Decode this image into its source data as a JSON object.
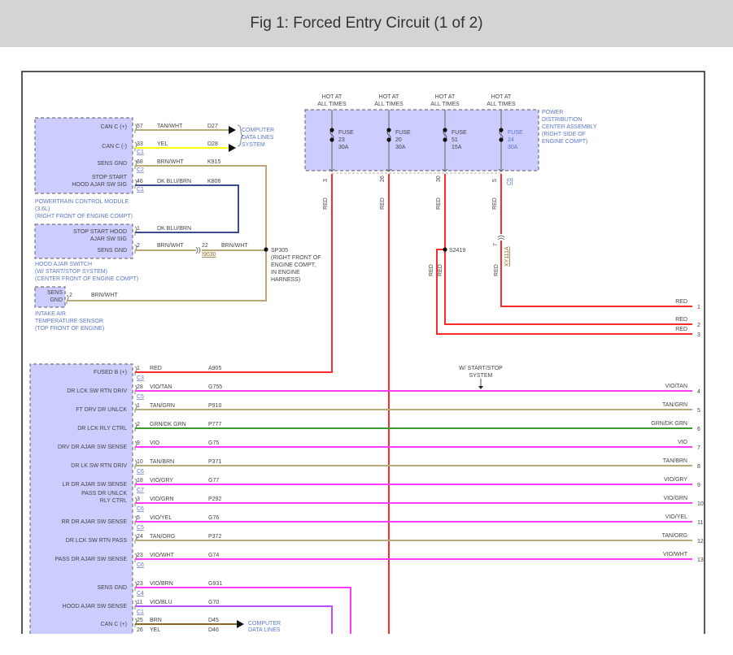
{
  "title": "Fig 1: Forced Entry Circuit (1 of 2)",
  "colors": {
    "module_fill": "#ccccff",
    "red": "#ff2a2a",
    "vio": "#ff3cff",
    "tan": "#b8ab7a",
    "green": "#3a9a30",
    "yel": "#ffff00",
    "dk_blu_brn": "#3a4c96",
    "brn_wht": "#bba877",
    "vio_blu": "#c04cff",
    "brn": "#8a6a20",
    "label_blue": "#5b78c8"
  },
  "pcm": {
    "name": [
      "POWERTRAIN CONTROL MODULE",
      "(3.6L)",
      "(RIGHT FRONT OF ENGINE COMPT)"
    ],
    "pins": [
      {
        "label": [
          "CAN C (+)"
        ],
        "pin": "57",
        "color_name": "TAN/WHT",
        "circuit": "D27",
        "connector": ""
      },
      {
        "label": [
          "CAN C (-)"
        ],
        "pin": "33",
        "color_name": "YEL",
        "circuit": "D28",
        "connector": "C1"
      },
      {
        "label": [
          "SENS GND"
        ],
        "pin": "68",
        "color_name": "BRN/WHT",
        "circuit": "K915",
        "connector": "C2"
      },
      {
        "label": [
          "STOP START",
          "HOOD AJAR SW SIG"
        ],
        "pin": "46",
        "color_name": "DK BLU/BRN",
        "circuit": "K806",
        "connector": "C1"
      }
    ]
  },
  "computer_data_lines": [
    "COMPUTER",
    "DATA LINES",
    "SYSTEM"
  ],
  "hood_switch": {
    "name": [
      "HOOD AJAR SWITCH",
      "(W/ START/STOP SYSTEM)",
      "(CENTER FRONT OF ENGINE COMPT)"
    ],
    "pins": [
      {
        "label": [
          "STOP START HOOD",
          "AJAR SW SIG"
        ],
        "pin": "1",
        "color_name": "DK BLU/BRN"
      },
      {
        "label": [
          "SENS GND"
        ],
        "pin": "2",
        "color_name": "BRN/WHT"
      }
    ],
    "inline": {
      "pin": "22",
      "color_name": "BRN/WHT",
      "connector": "I9030"
    }
  },
  "iat": {
    "name": [
      "INTAKE AIR",
      "TEMPERATURE SENSOR",
      "(TOP FRONT OF ENGINE)"
    ],
    "pin_label": [
      "SENS",
      "GND"
    ],
    "pin": "2",
    "color_name": "BRN/WHT"
  },
  "splice_sp305": {
    "id": "SP305",
    "desc": [
      "(RIGHT FRONT OF",
      "ENGINE COMPT,",
      "IN ENGINE",
      "HARNESS)"
    ]
  },
  "pdc": {
    "name": [
      "POWER",
      "DISTRIBUTION",
      "CENTER ASSEMBLY",
      "(RIGHT SIDE OF",
      "ENGINE COMPT)"
    ],
    "connector": "C5",
    "fuses": [
      {
        "hot": [
          "HOT AT",
          "ALL TIMES"
        ],
        "fuse": [
          "FUSE",
          "23",
          "30A"
        ],
        "pin": "3",
        "wire": "RED"
      },
      {
        "hot": [
          "HOT AT",
          "ALL TIMES"
        ],
        "fuse": [
          "FUSE",
          "20",
          "30A"
        ],
        "pin": "26",
        "wire": "RED"
      },
      {
        "hot": [
          "HOT AT",
          "ALL TIMES"
        ],
        "fuse": [
          "FUSE",
          "51",
          "15A"
        ],
        "pin": "30",
        "wire": "RED"
      },
      {
        "hot": [
          "HOT AT",
          "ALL TIMES"
        ],
        "fuse": [
          "FUSE",
          "24",
          "30A"
        ],
        "pin": "5",
        "wire": "RED"
      }
    ]
  },
  "splice_s2419": {
    "id": "S2419",
    "wires": [
      "RED",
      "RED"
    ]
  },
  "inline_xy": {
    "pin": "7",
    "connector": "XY111A",
    "wire": "RED"
  },
  "red_outputs": [
    {
      "label": "RED",
      "num": "1"
    },
    {
      "label": "RED",
      "num": "2"
    },
    {
      "label": "RED",
      "num": "3"
    }
  ],
  "note_start_stop": [
    "W/ START/STOP",
    "SYSTEM"
  ],
  "bcm_pins": [
    {
      "label": [
        "FUSED B (+)"
      ],
      "pin": "1",
      "color_name": "RED",
      "circuit": "A905",
      "connector": "C3",
      "right_label": "",
      "num": ""
    },
    {
      "label": [
        "DR LCK SW RTN DRIV"
      ],
      "pin": "28",
      "color_name": "VIO/TAN",
      "circuit": "G755",
      "connector": "C5",
      "right_label": "VIO/TAN",
      "num": "4"
    },
    {
      "label": [
        "FT DRV DR UNLCK"
      ],
      "pin": "1",
      "color_name": "TAN/GRN",
      "circuit": "P910",
      "connector": "",
      "right_label": "TAN/GRN",
      "num": "5"
    },
    {
      "label": [
        "DR LCK RLY CTRL"
      ],
      "pin": "2",
      "color_name": "GRN/DK GRN",
      "circuit": "P777",
      "connector": "",
      "right_label": "GRN/DK GRN",
      "num": "6"
    },
    {
      "label": [
        "DRV DR AJAR SW SENSE"
      ],
      "pin": "9",
      "color_name": "VIO",
      "circuit": "G75",
      "connector": "",
      "right_label": "VIO",
      "num": "7"
    },
    {
      "label": [
        "DR LK SW RTN DRIV"
      ],
      "pin": "10",
      "color_name": "TAN/BRN",
      "circuit": "P371",
      "connector": "C6",
      "right_label": "TAN/BRN",
      "num": "8"
    },
    {
      "label": [
        "LR DR AJAR SW SENSE"
      ],
      "pin": "18",
      "color_name": "VIO/GRY",
      "circuit": "G77",
      "connector": "C7",
      "right_label": "VIO/GRY",
      "num": "9"
    },
    {
      "label": [
        "PASS DR UNLCK",
        "RLY CTRL"
      ],
      "pin": "3",
      "color_name": "VIO/GRN",
      "circuit": "P292",
      "connector": "C6",
      "right_label": "VIO/GRN",
      "num": "10"
    },
    {
      "label": [
        "RR DR AJAR SW SENSE"
      ],
      "pin": "5",
      "color_name": "VIO/YEL",
      "circuit": "G76",
      "connector": "C5",
      "right_label": "VIO/YEL",
      "num": "11"
    },
    {
      "label": [
        "DR LCK SW RTN PASS"
      ],
      "pin": "24",
      "color_name": "TAN/ORG",
      "circuit": "P372",
      "connector": "",
      "right_label": "TAN/ORG",
      "num": "12"
    },
    {
      "label": [
        "PASS DR AJAR SW SENSE"
      ],
      "pin": "23",
      "color_name": "VIO/WHT",
      "circuit": "G74",
      "connector": "C6",
      "right_label": "VIO/WHT",
      "num": "13"
    },
    {
      "label": [
        "SENS GND"
      ],
      "pin": "23",
      "color_name": "VIO/BRN",
      "circuit": "G931",
      "connector": "C4",
      "right_label": "",
      "num": ""
    },
    {
      "label": [
        "HOOD AJAR SW SENSE"
      ],
      "pin": "11",
      "color_name": "VIO/BLU",
      "circuit": "G70",
      "connector": "C1",
      "right_label": "",
      "num": ""
    },
    {
      "label": [
        "CAN C (+)"
      ],
      "pin": "25",
      "color_name": "BRN",
      "circuit": "D45",
      "connector": "",
      "right_label": "",
      "num": ""
    }
  ],
  "bcm_extra_pin": {
    "pin": "26",
    "color_name": "YEL",
    "circuit": "D46"
  },
  "computer_data_lines_bottom": [
    "COMPUTER",
    "DATA LINES"
  ]
}
